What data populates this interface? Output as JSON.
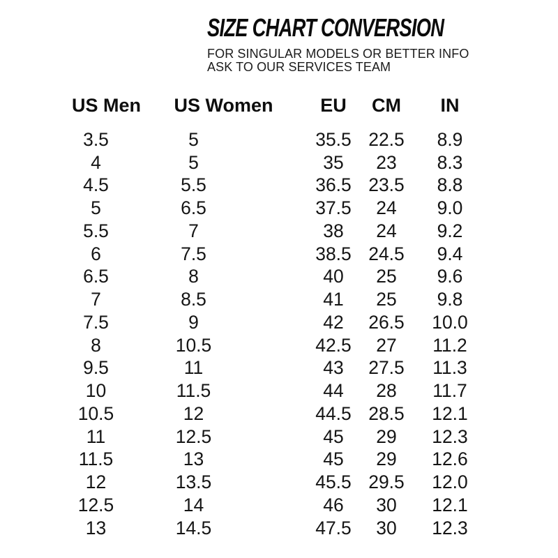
{
  "page": {
    "title": "SIZE CHART CONVERSION",
    "subtitle_line1": "FOR SINGULAR MODELS OR BETTER INFO",
    "subtitle_line2": "ASK TO OUR SERVICES TEAM"
  },
  "chart_data": {
    "type": "table",
    "title": "SIZE CHART CONVERSION",
    "subtitle": "FOR SINGULAR MODELS OR BETTER INFO ASK TO OUR SERVICES TEAM",
    "columns": [
      "US Men",
      "US Women",
      "EU",
      "CM",
      "IN"
    ],
    "rows": [
      [
        "3.5",
        "5",
        "35.5",
        "22.5",
        "8.9"
      ],
      [
        "4",
        "5",
        "35",
        "23",
        "8.3"
      ],
      [
        "4.5",
        "5.5",
        "36.5",
        "23.5",
        "8.8"
      ],
      [
        "5",
        "6.5",
        "37.5",
        "24",
        "9.0"
      ],
      [
        "5.5",
        "7",
        "38",
        "24",
        "9.2"
      ],
      [
        "6",
        "7.5",
        "38.5",
        "24.5",
        "9.4"
      ],
      [
        "6.5",
        "8",
        "40",
        "25",
        "9.6"
      ],
      [
        "7",
        "8.5",
        "41",
        "25",
        "9.8"
      ],
      [
        "7.5",
        "9",
        "42",
        "26.5",
        "10.0"
      ],
      [
        "8",
        "10.5",
        "42.5",
        "27",
        "11.2"
      ],
      [
        "9.5",
        "11",
        "43",
        "27.5",
        "11.3"
      ],
      [
        "10",
        "11.5",
        "44",
        "28",
        "11.7"
      ],
      [
        "10.5",
        "12",
        "44.5",
        "28.5",
        "12.1"
      ],
      [
        "11",
        "12.5",
        "45",
        "29",
        "12.3"
      ],
      [
        "11.5",
        "13",
        "45",
        "29",
        "12.6"
      ],
      [
        "12",
        "13.5",
        "45.5",
        "29.5",
        "12.0"
      ],
      [
        "12.5",
        "14",
        "46",
        "30",
        "12.1"
      ],
      [
        "13",
        "14.5",
        "47.5",
        "30",
        "12.3"
      ]
    ]
  },
  "colors": {
    "background": "#ffffff",
    "heading_text": "#0b0b0b",
    "body_text": "#151515"
  }
}
